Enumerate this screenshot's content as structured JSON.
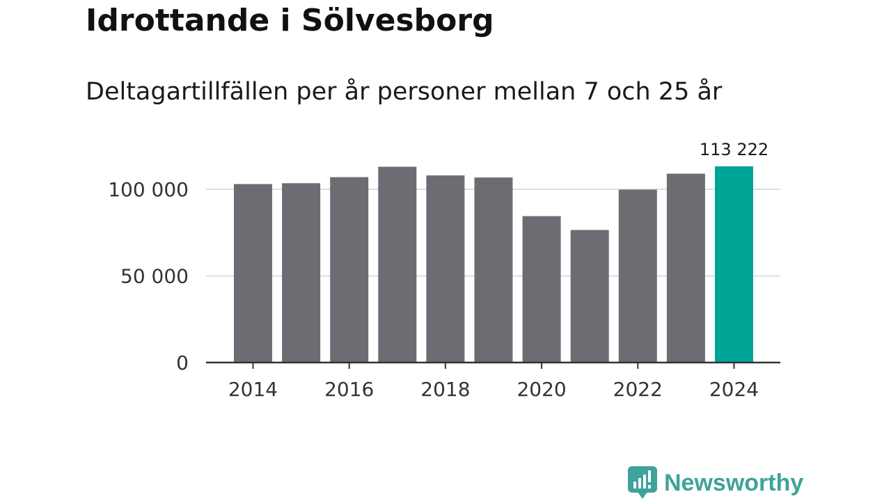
{
  "title": "Idrottande i Sölvesborg",
  "subtitle": "Deltagartillfällen per år personer mellan 7 och 25 år",
  "colors": {
    "bar": "#6d6c72",
    "highlight": "#00a497",
    "grid": "#dddddd",
    "axis": "#333333",
    "brand": "#3ea39a"
  },
  "chart_data": {
    "type": "bar",
    "title": "Idrottande i Sölvesborg",
    "subtitle": "Deltagartillfällen per år personer mellan 7 och 25 år",
    "xlabel": "",
    "ylabel": "",
    "categories": [
      "2014",
      "2015",
      "2016",
      "2017",
      "2018",
      "2019",
      "2020",
      "2021",
      "2022",
      "2023",
      "2024"
    ],
    "values": [
      103000,
      103500,
      107000,
      113000,
      108000,
      106800,
      84500,
      76500,
      99800,
      109000,
      113222
    ],
    "highlight_index": 10,
    "highlight_label": "113 222",
    "ylim": [
      0,
      120000
    ],
    "yticks": [
      0,
      50000,
      100000
    ],
    "ytick_labels": [
      "0",
      "50 000",
      "100 000"
    ],
    "xticks": [
      "2014",
      "2016",
      "2018",
      "2020",
      "2022",
      "2024"
    ],
    "grid": true
  },
  "brand": {
    "name": "Newsworthy",
    "icon": "newsworthy-logo-icon"
  }
}
